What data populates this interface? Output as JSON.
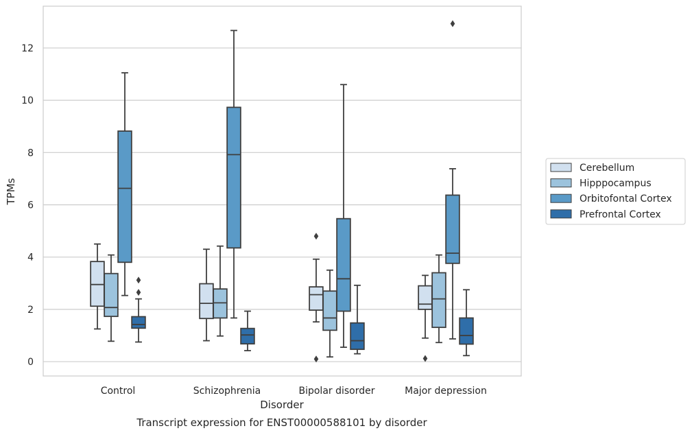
{
  "chart_data": {
    "type": "box",
    "title": "Transcript expression for ENST00000588101 by disorder",
    "xlabel": "Disorder",
    "ylabel": "TPMs",
    "ylim": [
      -0.55,
      13.6
    ],
    "yticks": [
      0,
      2,
      4,
      6,
      8,
      10,
      12
    ],
    "grid": true,
    "legend_position": "right",
    "categories": [
      "Control",
      "Schizophrenia",
      "Bipolar disorder",
      "Major depression"
    ],
    "series": [
      {
        "name": "Cerebellum",
        "color": "#d1e0ef",
        "boxes": [
          {
            "whislo": 1.25,
            "q1": 2.12,
            "med": 2.95,
            "q3": 3.83,
            "whishi": 4.5,
            "fliers": []
          },
          {
            "whislo": 0.8,
            "q1": 1.65,
            "med": 2.23,
            "q3": 2.98,
            "whishi": 4.3,
            "fliers": []
          },
          {
            "whislo": 1.52,
            "q1": 1.97,
            "med": 2.56,
            "q3": 2.86,
            "whishi": 3.92,
            "fliers": [
              0.1,
              4.8
            ]
          },
          {
            "whislo": 0.9,
            "q1": 2.0,
            "med": 2.2,
            "q3": 2.9,
            "whishi": 3.3,
            "fliers": [
              0.12
            ]
          }
        ]
      },
      {
        "name": "Hipppocampus",
        "color": "#9cc3dd",
        "boxes": [
          {
            "whislo": 0.78,
            "q1": 1.73,
            "med": 2.07,
            "q3": 3.37,
            "whishi": 4.08,
            "fliers": []
          },
          {
            "whislo": 0.98,
            "q1": 1.67,
            "med": 2.25,
            "q3": 2.78,
            "whishi": 4.42,
            "fliers": []
          },
          {
            "whislo": 0.18,
            "q1": 1.2,
            "med": 1.67,
            "q3": 2.7,
            "whishi": 3.5,
            "fliers": []
          },
          {
            "whislo": 0.73,
            "q1": 1.31,
            "med": 2.4,
            "q3": 3.4,
            "whishi": 4.08,
            "fliers": []
          }
        ]
      },
      {
        "name": "Orbitofontal Cortex",
        "color": "#5a9ac7",
        "boxes": [
          {
            "whislo": 2.53,
            "q1": 3.8,
            "med": 6.63,
            "q3": 8.82,
            "whishi": 11.05,
            "fliers": []
          },
          {
            "whislo": 1.67,
            "q1": 4.35,
            "med": 7.92,
            "q3": 9.73,
            "whishi": 12.67,
            "fliers": []
          },
          {
            "whislo": 0.55,
            "q1": 1.93,
            "med": 3.17,
            "q3": 5.47,
            "whishi": 10.6,
            "fliers": []
          },
          {
            "whislo": 0.87,
            "q1": 3.76,
            "med": 4.15,
            "q3": 6.37,
            "whishi": 7.38,
            "fliers": [
              12.93
            ]
          }
        ]
      },
      {
        "name": "Prefrontal Cortex",
        "color": "#2f6ea9",
        "boxes": [
          {
            "whislo": 0.75,
            "q1": 1.28,
            "med": 1.42,
            "q3": 1.72,
            "whishi": 2.4,
            "fliers": [
              2.65,
              3.12
            ]
          },
          {
            "whislo": 0.42,
            "q1": 0.68,
            "med": 1.02,
            "q3": 1.27,
            "whishi": 1.93,
            "fliers": []
          },
          {
            "whislo": 0.3,
            "q1": 0.47,
            "med": 0.8,
            "q3": 1.48,
            "whishi": 2.92,
            "fliers": []
          },
          {
            "whislo": 0.23,
            "q1": 0.67,
            "med": 1.0,
            "q3": 1.67,
            "whishi": 2.75,
            "fliers": []
          }
        ]
      }
    ]
  }
}
